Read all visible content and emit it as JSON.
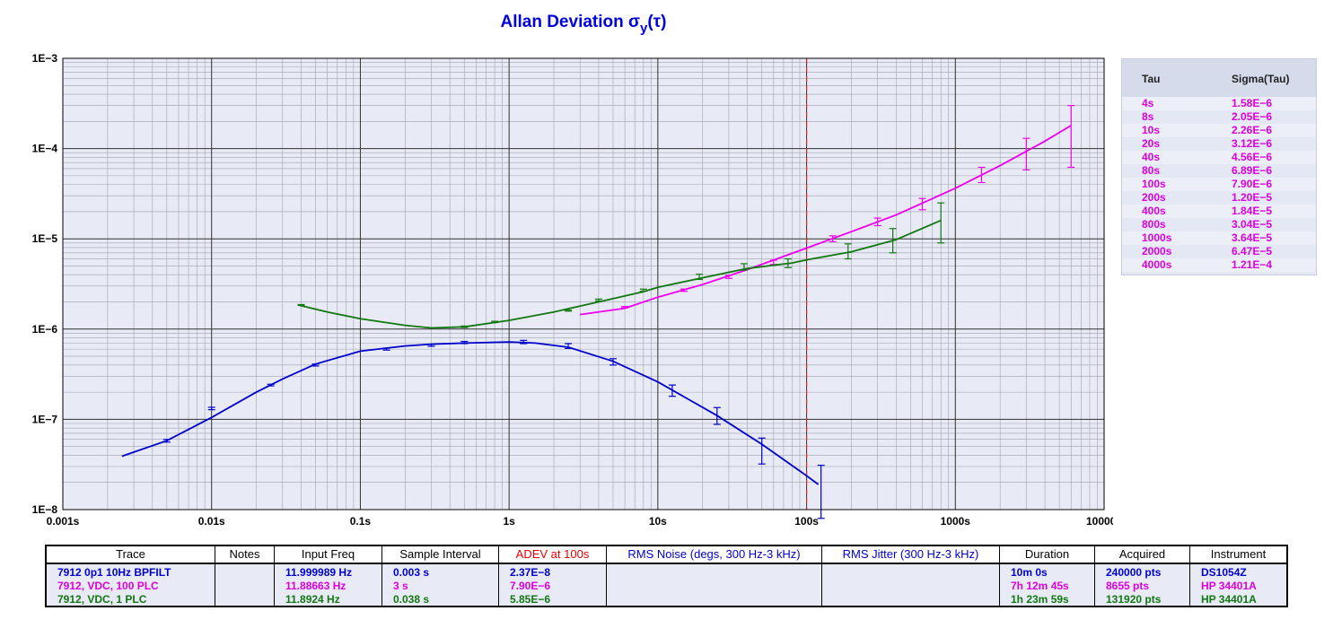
{
  "title_main": "Allan Deviation σ",
  "title_sub": "y",
  "title_tail": "(τ)",
  "colors": {
    "blue": "#0000cc",
    "magenta": "#ee00ee",
    "green": "#117711",
    "marker": "#dd2222"
  },
  "chart_data": {
    "type": "line",
    "x_scale": "log",
    "y_scale": "log",
    "xlim": [
      0.001,
      10000
    ],
    "ylim": [
      1e-08,
      0.001
    ],
    "x_ticks": [
      "0.001s",
      "0.01s",
      "0.1s",
      "1s",
      "10s",
      "100s",
      "1000s",
      "10000s"
    ],
    "y_ticks": [
      "1E−8",
      "1E−7",
      "1E−6",
      "1E−5",
      "1E−4",
      "1E−3"
    ],
    "grid": true,
    "reference_line_x": 100,
    "series": [
      {
        "color": "#0000cc",
        "x": [
          0.0025,
          0.005,
          0.01,
          0.02,
          0.03,
          0.05,
          0.1,
          0.2,
          0.3,
          0.5,
          1,
          1.5,
          2.5,
          5,
          10,
          25,
          50,
          100,
          120
        ],
        "y": [
          3.9e-08,
          5.8e-08,
          1.05e-07,
          2e-07,
          2.8e-07,
          4.1e-07,
          5.7e-07,
          6.5e-07,
          6.8e-07,
          7e-07,
          7.2e-07,
          7e-07,
          6.3e-07,
          4.4e-07,
          2.6e-07,
          1.1e-07,
          5.3e-08,
          2.37e-08,
          1.9e-08
        ],
        "err_x": [
          0.005,
          0.01,
          0.025,
          0.05,
          0.15,
          0.3,
          0.5,
          1.25,
          2.5,
          5,
          12.5,
          25,
          50,
          125
        ],
        "err_y": [
          5.8e-08,
          1.32e-07,
          2.4e-07,
          4e-07,
          6e-07,
          6.6e-07,
          7.1e-07,
          7.2e-07,
          6.5e-07,
          4.4e-07,
          2.1e-07,
          1.1e-07,
          4.6e-08,
          1.8e-08
        ],
        "err_lo": [
          5.6e-08,
          1.28e-07,
          2.35e-07,
          3.9e-07,
          5.85e-07,
          6.45e-07,
          6.9e-07,
          6.9e-07,
          6.1e-07,
          4e-07,
          1.8e-07,
          8.8e-08,
          3.2e-08,
          8e-09
        ],
        "err_hi": [
          6e-08,
          1.36e-07,
          2.45e-07,
          4.1e-07,
          6.15e-07,
          6.75e-07,
          7.3e-07,
          7.5e-07,
          6.9e-07,
          4.7e-07,
          2.4e-07,
          1.35e-07,
          6.2e-08,
          3.1e-08
        ]
      },
      {
        "color": "#ee00ee",
        "x": [
          3,
          6,
          10,
          20,
          40,
          100,
          200,
          400,
          1000,
          2000,
          4000,
          6000
        ],
        "y": [
          1.45e-06,
          1.7e-06,
          2.26e-06,
          3.12e-06,
          4.56e-06,
          7.9e-06,
          1.2e-05,
          1.84e-05,
          3.64e-05,
          6.47e-05,
          0.000121,
          0.00018
        ],
        "err_x": [
          6,
          15,
          30,
          60,
          150,
          300,
          600,
          1500,
          3000,
          6000
        ],
        "err_y": [
          1.75e-06,
          2.7e-06,
          3.8e-06,
          5.5e-06,
          1e-05,
          1.55e-05,
          2.5e-05,
          5.2e-05,
          9.5e-05,
          0.00018
        ],
        "err_lo": [
          1.72e-06,
          2.62e-06,
          3.65e-06,
          5.2e-06,
          9.3e-06,
          1.4e-05,
          2.1e-05,
          4.2e-05,
          5.8e-05,
          6.2e-05
        ],
        "err_hi": [
          1.78e-06,
          2.78e-06,
          3.95e-06,
          5.8e-06,
          1.08e-05,
          1.7e-05,
          2.8e-05,
          6.2e-05,
          0.00013,
          0.0003
        ]
      },
      {
        "color": "#117711",
        "x": [
          0.038,
          0.06,
          0.1,
          0.2,
          0.3,
          0.5,
          1,
          2,
          4,
          8,
          10,
          20,
          40,
          80,
          100,
          200,
          400,
          800
        ],
        "y": [
          1.85e-06,
          1.55e-06,
          1.3e-06,
          1.1e-06,
          1.03e-06,
          1.06e-06,
          1.25e-06,
          1.55e-06,
          2e-06,
          2.6e-06,
          2.9e-06,
          3.7e-06,
          4.7e-06,
          5.4e-06,
          5.85e-06,
          7.2e-06,
          9.8e-06,
          1.6e-05
        ],
        "err_x": [
          0.04,
          0.5,
          0.8,
          2.5,
          4,
          8,
          19,
          38,
          75,
          190,
          380,
          800
        ],
        "err_y": [
          1.85e-06,
          1.06e-06,
          1.2e-06,
          1.6e-06,
          2.1e-06,
          2.7e-06,
          3.8e-06,
          4.9e-06,
          5.4e-06,
          7.3e-06,
          1e-05,
          1.6e-05
        ],
        "err_lo": [
          1.83e-06,
          1.04e-06,
          1.18e-06,
          1.58e-06,
          2.05e-06,
          2.63e-06,
          3.55e-06,
          4.5e-06,
          4.8e-06,
          6e-06,
          7e-06,
          9e-06
        ],
        "err_hi": [
          1.87e-06,
          1.08e-06,
          1.22e-06,
          1.62e-06,
          2.15e-06,
          2.77e-06,
          4.05e-06,
          5.3e-06,
          6e-06,
          8.8e-06,
          1.3e-05,
          2.5e-05
        ]
      }
    ]
  },
  "tau_table": {
    "headers": [
      "Tau",
      "Sigma(Tau)"
    ],
    "rows": [
      {
        "tau": "4s",
        "sigma": "1.58E−6"
      },
      {
        "tau": "8s",
        "sigma": "2.05E−6"
      },
      {
        "tau": "10s",
        "sigma": "2.26E−6"
      },
      {
        "tau": "20s",
        "sigma": "3.12E−6"
      },
      {
        "tau": "40s",
        "sigma": "4.56E−6"
      },
      {
        "tau": "80s",
        "sigma": "6.89E−6"
      },
      {
        "tau": "100s",
        "sigma": "7.90E−6"
      },
      {
        "tau": "200s",
        "sigma": "1.20E−5"
      },
      {
        "tau": "400s",
        "sigma": "1.84E−5"
      },
      {
        "tau": "800s",
        "sigma": "3.04E−5"
      },
      {
        "tau": "1000s",
        "sigma": "3.64E−5"
      },
      {
        "tau": "2000s",
        "sigma": "6.47E−5"
      },
      {
        "tau": "4000s",
        "sigma": "1.21E−4"
      }
    ]
  },
  "trace_table": {
    "headers": [
      "Trace",
      "Notes",
      "Input Freq",
      "Sample Interval",
      "ADEV at 100s",
      "RMS Noise (degs, 300 Hz-3 kHz)",
      "RMS Jitter (300 Hz-3 kHz)",
      "Duration",
      "Acquired",
      "Instrument"
    ],
    "header_colors": [
      "#000000",
      "#000000",
      "#000000",
      "#000000",
      "#ee0000",
      "#0000cc",
      "#0000cc",
      "#000000",
      "#000000",
      "#000000"
    ],
    "rows": [
      [
        "7912 0p1 10Hz BPFILT",
        "",
        "11.999989 Hz",
        "0.003 s",
        "2.37E−8",
        "",
        "",
        "10m 0s",
        "240000 pts",
        "DS1054Z"
      ],
      [
        "7912, VDC, 100 PLC",
        "",
        "11.88663 Hz",
        "3 s",
        "7.90E−6",
        "",
        "",
        "7h 12m 45s",
        "8655 pts",
        "HP 34401A"
      ],
      [
        "7912, VDC, 1 PLC",
        "",
        "11.8924 Hz",
        "0.038 s",
        "5.85E−6",
        "",
        "",
        "1h 23m 59s",
        "131920 pts",
        "HP 34401A"
      ]
    ]
  }
}
